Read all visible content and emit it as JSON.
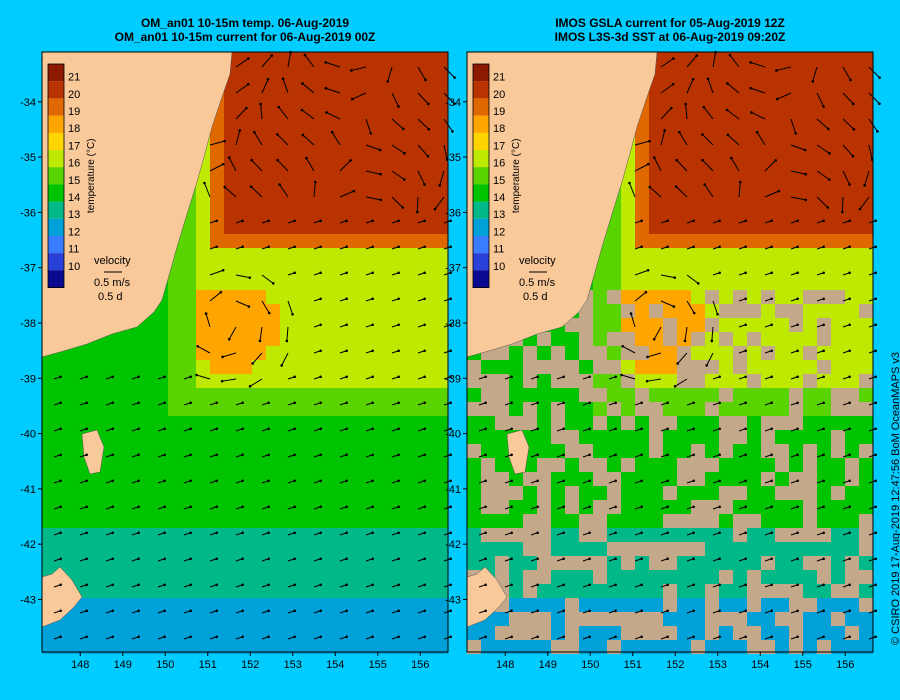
{
  "panels": [
    {
      "title_line1": "OM_an01 10-15m temp. 06-Aug-2019",
      "title_line2": "OM_an01 10-15m current for 06-Aug-2019 00Z",
      "source": "model"
    },
    {
      "title_line1": "IMOS GSLA current for 05-Aug-2019 12Z",
      "title_line2": "IMOS L3S-3d SST at 06-Aug-2019 09:20Z",
      "source": "satellite"
    }
  ],
  "colorbar": {
    "ticks": [
      "21",
      "20",
      "19",
      "18",
      "17",
      "16",
      "15",
      "14",
      "13",
      "12",
      "11",
      "10"
    ],
    "label": "temperature (°C)",
    "colors": [
      "#8b1a00",
      "#b83300",
      "#e06800",
      "#ffa500",
      "#ffd400",
      "#bdea00",
      "#59d400",
      "#00c400",
      "#00b888",
      "#00a0d8",
      "#3a7cff",
      "#2840d8",
      "#0a0a90"
    ]
  },
  "velocity_key": {
    "title": "velocity",
    "speed": "0.5 m/s",
    "duration": "0.5 d"
  },
  "axes": {
    "lat_ticks": [
      "-34",
      "-35",
      "-36",
      "-37",
      "-38",
      "-39",
      "-40",
      "-41",
      "-42",
      "-43"
    ],
    "lon_ticks": [
      "148",
      "149",
      "150",
      "151",
      "152",
      "153",
      "154",
      "155",
      "156"
    ]
  },
  "colors": {
    "background": "#00ccff",
    "land": "#f9c99a",
    "no_data": "#c4a88a",
    "vector": "#000000"
  },
  "credit": "© CSIRO 2019   17-Aug-2019 12:47:56 BoM OceanMAPS v3"
}
